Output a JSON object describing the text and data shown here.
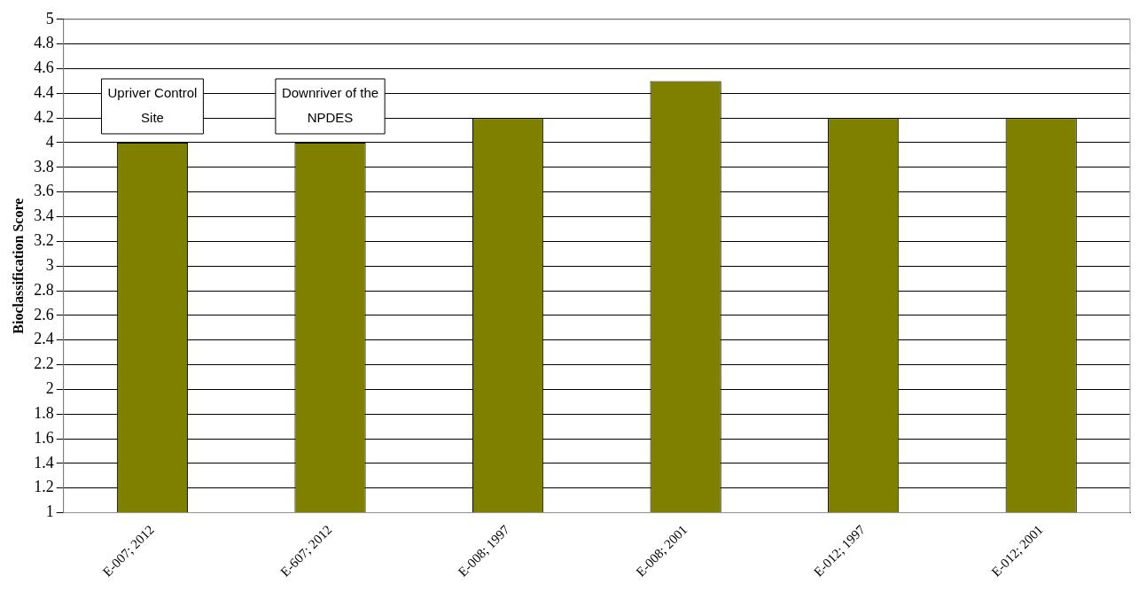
{
  "chart_data": {
    "type": "bar",
    "ylabel": "Bioclassification Score",
    "categories": [
      "E-007; 2012",
      "E-607; 2012",
      "E-008; 1997",
      "E-008; 2001",
      "E-012; 1997",
      "E-012; 2001"
    ],
    "values": [
      4,
      4,
      4.2,
      4.5,
      4.2,
      4.2
    ],
    "color": "#808000",
    "ylim": [
      1,
      5
    ],
    "yticks": [
      1,
      1.2,
      1.4,
      1.6,
      1.8,
      2,
      2.2,
      2.4,
      2.6,
      2.8,
      3,
      3.2,
      3.4,
      3.6,
      3.8,
      4,
      4.2,
      4.4,
      4.6,
      4.8,
      5
    ],
    "grid": "y",
    "legend": false,
    "annotations": [
      {
        "text": "Upriver Control Site",
        "x": "E-007; 2012",
        "y": 4
      },
      {
        "text": "Downriver of the NPDES",
        "x": "E-607; 2012",
        "y": 4
      }
    ]
  }
}
